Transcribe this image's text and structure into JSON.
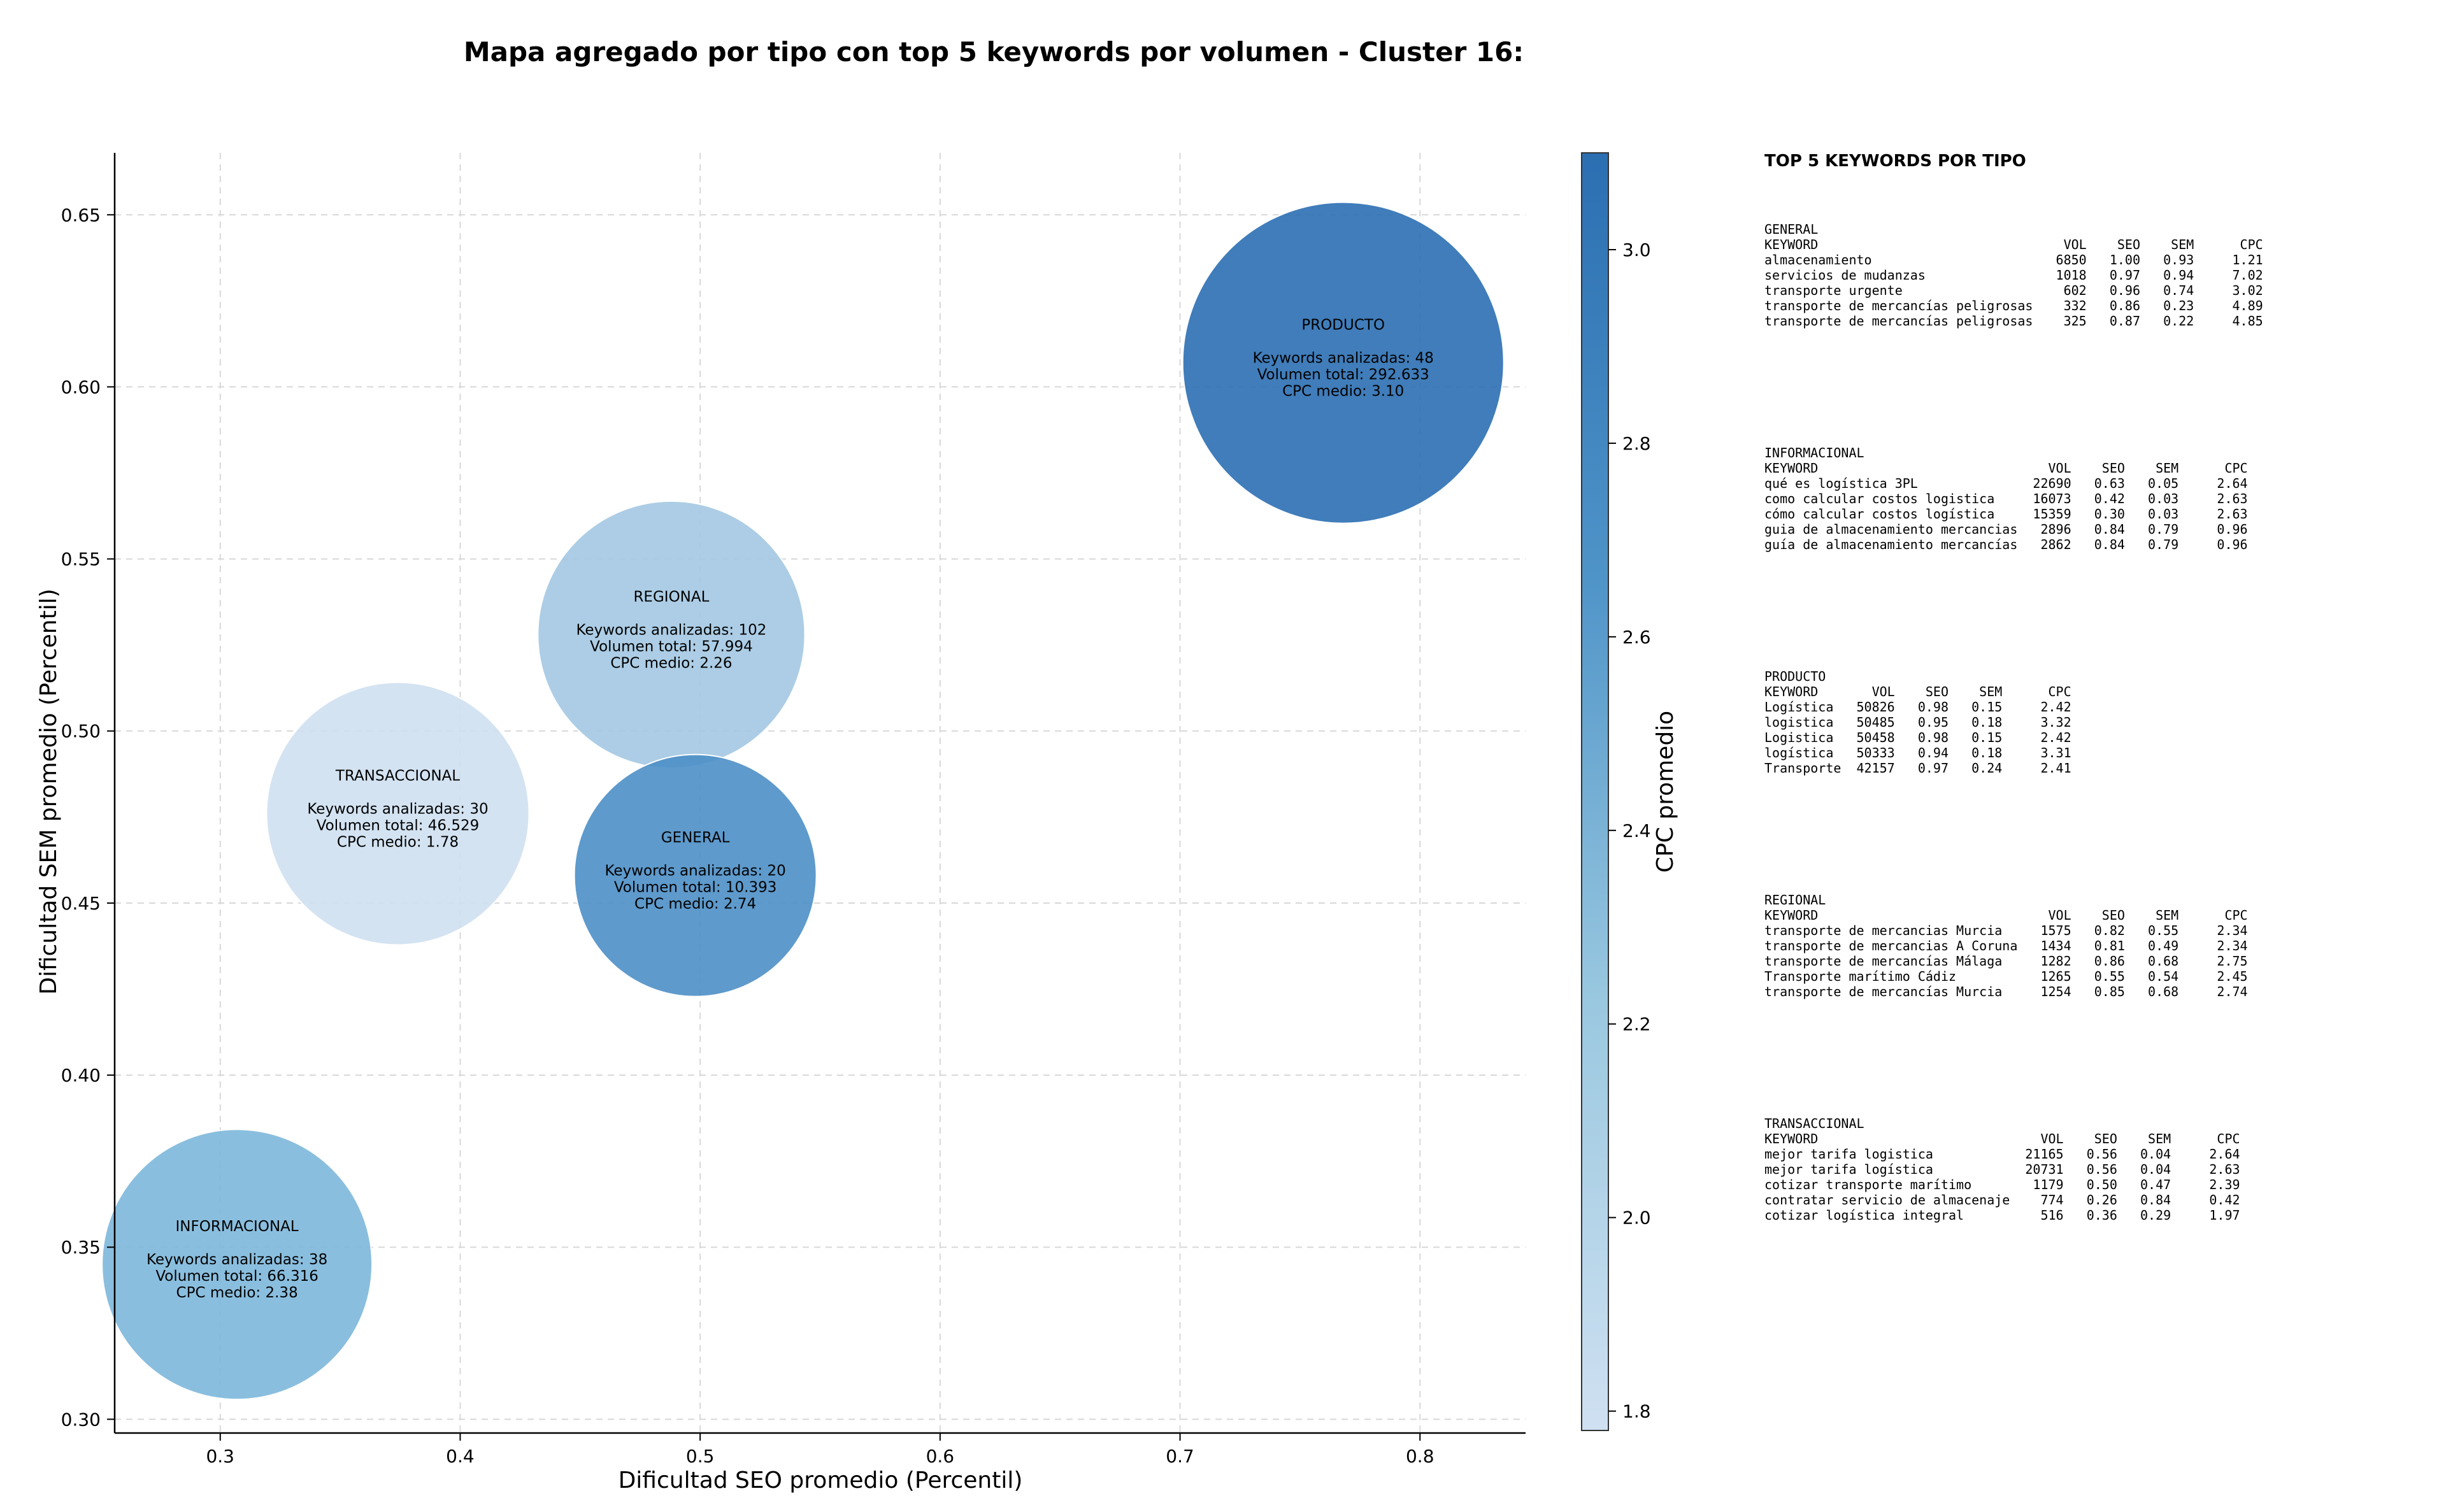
{
  "chart_data": {
    "type": "scatter",
    "title": "Mapa agregado por tipo con top 5 keywords por volumen - Cluster 16:",
    "xlabel": "Dificultad SEO promedio (Percentil)",
    "ylabel": "Dificultad SEM promedio (Percentil)",
    "xlim": [
      0.256,
      0.844
    ],
    "ylim": [
      0.296,
      0.668
    ],
    "xticks": [
      "0.3",
      "0.4",
      "0.5",
      "0.6",
      "0.7",
      "0.8"
    ],
    "yticks": [
      "0.30",
      "0.35",
      "0.40",
      "0.45",
      "0.50",
      "0.55",
      "0.60",
      "0.65"
    ],
    "grid": true,
    "colorbar": {
      "label": "CPC promedio",
      "min": 1.78,
      "max": 3.1,
      "ticks": [
        "1.8",
        "2.0",
        "2.2",
        "2.4",
        "2.6",
        "2.8",
        "3.0"
      ],
      "colors": [
        "#cfe0f1",
        "#9ac8e0",
        "#4f94c8",
        "#2b6fb2"
      ]
    },
    "bubble_label_prefixes": {
      "keywords": "Keywords analizadas: ",
      "volume": "Volumen total: ",
      "cpc": "CPC medio: "
    },
    "points": [
      {
        "tipo": "PRODUCTO",
        "x": 0.768,
        "y": 0.607,
        "keywords": "48",
        "volumen": "292.633",
        "cpc": "3.10",
        "cpc_value": 3.1,
        "color": "#2b6fb2"
      },
      {
        "tipo": "REGIONAL",
        "x": 0.488,
        "y": 0.528,
        "keywords": "102",
        "volumen": "57.994",
        "cpc": "2.26",
        "cpc_value": 2.26,
        "color": "#a3c8e2"
      },
      {
        "tipo": "TRANSACCIONAL",
        "x": 0.374,
        "y": 0.476,
        "keywords": "30",
        "volumen": "46.529",
        "cpc": "1.78",
        "cpc_value": 1.78,
        "color": "#cfe0f1"
      },
      {
        "tipo": "GENERAL",
        "x": 0.498,
        "y": 0.458,
        "keywords": "20",
        "volumen": "10.393",
        "cpc": "2.74",
        "cpc_value": 2.74,
        "color": "#4c8fc6"
      },
      {
        "tipo": "INFORMACIONAL",
        "x": 0.307,
        "y": 0.345,
        "keywords": "38",
        "volumen": "66.316",
        "cpc": "2.38",
        "cpc_value": 2.38,
        "color": "#7db7da"
      }
    ]
  },
  "side_panel": {
    "title": "TOP 5 KEYWORDS POR TIPO",
    "column_headers": [
      "KEYWORD",
      "VOL",
      "SEO",
      "SEM",
      "CPC"
    ],
    "groups": [
      {
        "name": "GENERAL",
        "rows": [
          [
            "almacenamiento",
            "6850",
            "1.00",
            "0.93",
            "1.21"
          ],
          [
            "servicios de mudanzas",
            "1018",
            "0.97",
            "0.94",
            "7.02"
          ],
          [
            "transporte urgente",
            "602",
            "0.96",
            "0.74",
            "3.02"
          ],
          [
            "transporte de mercancías peligrosas",
            "332",
            "0.86",
            "0.23",
            "4.89"
          ],
          [
            "transporte de mercancías peligrosas",
            "325",
            "0.87",
            "0.22",
            "4.85"
          ]
        ]
      },
      {
        "name": "INFORMACIONAL",
        "rows": [
          [
            "qué es logística 3PL",
            "22690",
            "0.63",
            "0.05",
            "2.64"
          ],
          [
            "como calcular costos logistica",
            "16073",
            "0.42",
            "0.03",
            "2.63"
          ],
          [
            "cómo calcular costos logística",
            "15359",
            "0.30",
            "0.03",
            "2.63"
          ],
          [
            "guia de almacenamiento mercancias",
            "2896",
            "0.84",
            "0.79",
            "0.96"
          ],
          [
            "guía de almacenamiento mercancías",
            "2862",
            "0.84",
            "0.79",
            "0.96"
          ]
        ]
      },
      {
        "name": "PRODUCTO",
        "rows": [
          [
            "Logística",
            "50826",
            "0.98",
            "0.15",
            "2.42"
          ],
          [
            "logistica",
            "50485",
            "0.95",
            "0.18",
            "3.32"
          ],
          [
            "Logistica",
            "50458",
            "0.98",
            "0.15",
            "2.42"
          ],
          [
            "logística",
            "50333",
            "0.94",
            "0.18",
            "3.31"
          ],
          [
            "Transporte",
            "42157",
            "0.97",
            "0.24",
            "2.41"
          ]
        ]
      },
      {
        "name": "REGIONAL",
        "rows": [
          [
            "transporte de mercancias Murcia",
            "1575",
            "0.82",
            "0.55",
            "2.34"
          ],
          [
            "transporte de mercancias A Coruna",
            "1434",
            "0.81",
            "0.49",
            "2.34"
          ],
          [
            "transporte de mercancías Málaga",
            "1282",
            "0.86",
            "0.68",
            "2.75"
          ],
          [
            "Transporte marítimo Cádiz",
            "1265",
            "0.55",
            "0.54",
            "2.45"
          ],
          [
            "transporte de mercancías Murcia",
            "1254",
            "0.85",
            "0.68",
            "2.74"
          ]
        ]
      },
      {
        "name": "TRANSACCIONAL",
        "rows": [
          [
            "mejor tarifa logistica",
            "21165",
            "0.56",
            "0.04",
            "2.64"
          ],
          [
            "mejor tarifa logística",
            "20731",
            "0.56",
            "0.04",
            "2.63"
          ],
          [
            "cotizar transporte marítimo",
            "1179",
            "0.50",
            "0.47",
            "2.39"
          ],
          [
            "contratar servicio de almacenaje",
            "774",
            "0.26",
            "0.84",
            "0.42"
          ],
          [
            "cotizar logística integral",
            "516",
            "0.36",
            "0.29",
            "1.97"
          ]
        ]
      }
    ]
  }
}
